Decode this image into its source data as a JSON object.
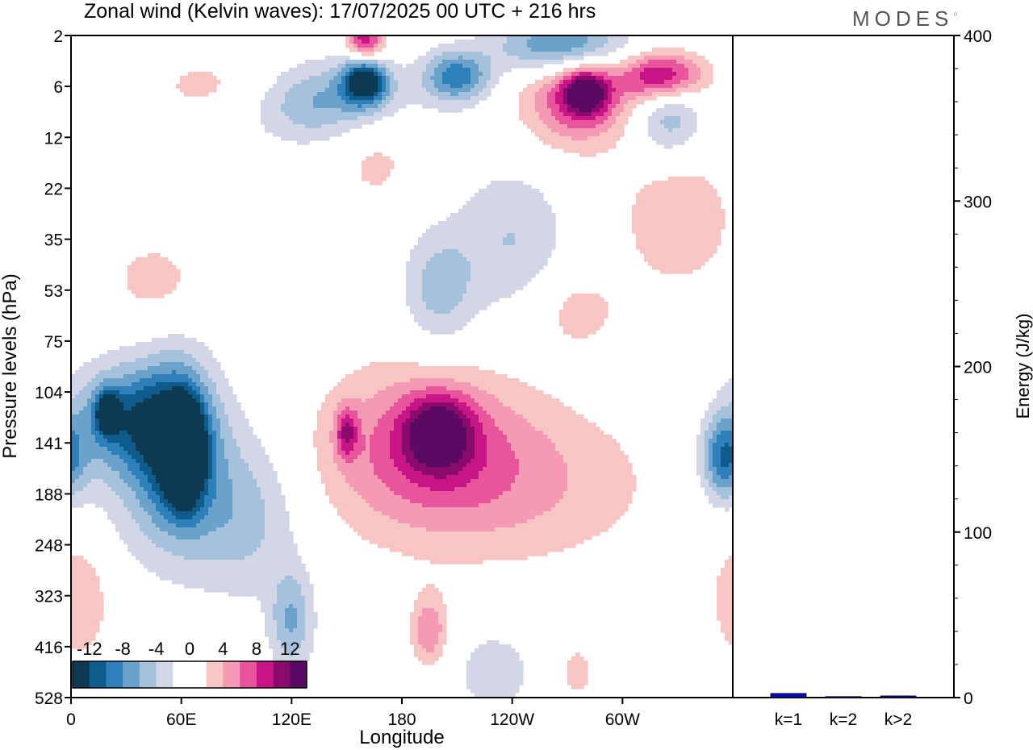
{
  "chart_data": {
    "type": "heatmap",
    "title": "Zonal wind (Kelvin waves):  17/07/2025  00 UTC  + 216 hrs",
    "logo": "MODES",
    "hovmoller": {
      "xlabel": "Longitude",
      "ylabel": "Pressure levels (hPa)",
      "x_ticks": [
        "0",
        "60E",
        "120E",
        "180",
        "120W",
        "60W"
      ],
      "x_tick_degrees": [
        0,
        60,
        120,
        180,
        240,
        300
      ],
      "xlim": [
        0,
        360
      ],
      "y_levels": [
        2,
        6,
        12,
        22,
        35,
        53,
        75,
        104,
        141,
        188,
        248,
        323,
        416,
        528
      ],
      "y_level_labels": [
        "2",
        "6",
        "12",
        "22",
        "35",
        "53",
        "75",
        "104",
        "141",
        "188",
        "248",
        "323",
        "416",
        "528"
      ],
      "y_axis": "inverted, level index",
      "colorbar": {
        "tick_labels": [
          "-12",
          "-8",
          "-4",
          "0",
          "4",
          "8",
          "12"
        ],
        "colors": [
          "#0d3a52",
          "#0f5c8c",
          "#2e80ba",
          "#6aa2cc",
          "#a6c1dc",
          "#d3d6e7",
          "#ffffff",
          "#ffffff",
          "#f7c5c4",
          "#f59ab5",
          "#e9559c",
          "#c71585",
          "#8b0a6e",
          "#5b0a63"
        ]
      },
      "blobs": [
        {
          "lon": 62,
          "lev": 8.2,
          "rlon": 9,
          "rlev": 0.9,
          "v": -14
        },
        {
          "lon": 58,
          "lev": 8.0,
          "rlon": 20,
          "rlev": 1.5,
          "v": -11
        },
        {
          "lon": 30,
          "lev": 7.5,
          "rlon": 28,
          "rlev": 1.0,
          "v": -8
        },
        {
          "lon": 20,
          "lev": 7.4,
          "rlon": 6,
          "rlev": 0.4,
          "v": -11
        },
        {
          "lon": 50,
          "lev": 8.6,
          "rlon": 50,
          "rlev": 2.0,
          "v": -4
        },
        {
          "lon": 95,
          "lev": 9.5,
          "rlon": 30,
          "rlev": 1.5,
          "v": -4
        },
        {
          "lon": 120,
          "lev": 11.5,
          "rlon": 12,
          "rlev": 1.0,
          "v": -6
        },
        {
          "lon": 355,
          "lev": 8.3,
          "rlon": 12,
          "rlev": 0.8,
          "v": -9
        },
        {
          "lon": 200,
          "lev": 5.0,
          "rlon": 20,
          "rlev": 1.2,
          "v": -5
        },
        {
          "lon": 240,
          "lev": 4.0,
          "rlon": 30,
          "rlev": 1.5,
          "v": -4
        },
        {
          "lon": 140,
          "lev": 1.3,
          "rlon": 45,
          "rlev": 0.8,
          "v": -7
        },
        {
          "lon": 160,
          "lev": 0.9,
          "rlon": 12,
          "rlev": 0.45,
          "v": -13
        },
        {
          "lon": 210,
          "lev": 0.8,
          "rlon": 18,
          "rlev": 0.5,
          "v": -9
        },
        {
          "lon": 268,
          "lev": 0.2,
          "rlon": 35,
          "rlev": 0.6,
          "v": -10
        },
        {
          "lon": 325,
          "lev": 1.5,
          "rlon": 18,
          "rlev": 0.9,
          "v": -6
        },
        {
          "lon": 230,
          "lev": 12.5,
          "rlon": 25,
          "rlev": 1.0,
          "v": -3
        },
        {
          "lon": 200,
          "lev": 7.8,
          "rlon": 18,
          "rlev": 0.7,
          "v": 10
        },
        {
          "lon": 190,
          "lev": 8.0,
          "rlon": 55,
          "rlev": 1.6,
          "v": 6
        },
        {
          "lon": 240,
          "lev": 8.8,
          "rlon": 80,
          "rlev": 1.6,
          "v": 4
        },
        {
          "lon": 150,
          "lev": 7.8,
          "rlon": 6,
          "rlev": 0.5,
          "v": 7
        },
        {
          "lon": 195,
          "lev": 11.7,
          "rlon": 10,
          "rlev": 0.7,
          "v": 6
        },
        {
          "lon": 275,
          "lev": 1.2,
          "rlon": 30,
          "rlev": 1.0,
          "v": 8
        },
        {
          "lon": 322,
          "lev": 0.8,
          "rlon": 22,
          "rlev": 0.5,
          "v": 12
        },
        {
          "lon": 280,
          "lev": 1.1,
          "rlon": 12,
          "rlev": 0.45,
          "v": 10
        },
        {
          "lon": 160,
          "lev": 0.1,
          "rlon": 10,
          "rlev": 0.4,
          "v": 10
        },
        {
          "lon": 165,
          "lev": 2.2,
          "rlon": 25,
          "rlev": 1.2,
          "v": 3
        },
        {
          "lon": 330,
          "lev": 3.6,
          "rlon": 30,
          "rlev": 1.3,
          "v": 4
        },
        {
          "lon": 45,
          "lev": 4.8,
          "rlon": 25,
          "rlev": 0.8,
          "v": 3
        },
        {
          "lon": 275,
          "lev": 5.4,
          "rlon": 25,
          "rlev": 0.8,
          "v": 3
        },
        {
          "lon": 5,
          "lev": 11.0,
          "rlon": 18,
          "rlev": 1.3,
          "v": 4
        },
        {
          "lon": 275,
          "lev": 12.5,
          "rlon": 10,
          "rlev": 0.6,
          "v": 3
        },
        {
          "lon": 80,
          "lev": 1.0,
          "rlon": 40,
          "rlev": 0.7,
          "v": 3
        }
      ]
    },
    "energy": {
      "type": "bar",
      "ylabel": "Energy (J/kg)",
      "ylim": [
        0,
        400
      ],
      "y_ticks": [
        "0",
        "100",
        "200",
        "300",
        "400"
      ],
      "y_tick_values": [
        0,
        100,
        200,
        300,
        400
      ],
      "categories": [
        "k=1",
        "k=2",
        "k>2"
      ],
      "values": [
        2.5,
        0.5,
        1.0
      ],
      "bar_color": "#0b0bb5"
    }
  }
}
